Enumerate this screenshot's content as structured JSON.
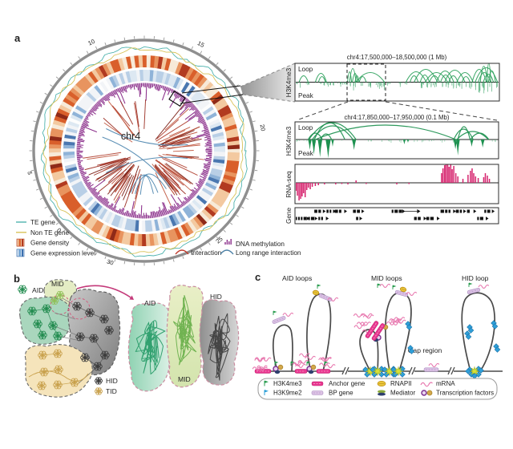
{
  "panel_a": {
    "label": "a",
    "circos": {
      "center_label": "chr4",
      "ticks": [
        {
          "label": "0",
          "angle": 223
        },
        {
          "label": "5",
          "angle": 191
        },
        {
          "label": "10",
          "angle": 116
        },
        {
          "label": "15",
          "angle": 62
        },
        {
          "label": "20",
          "angle": 11
        },
        {
          "label": "25",
          "angle": 310
        },
        {
          "label": "30",
          "angle": 253
        }
      ],
      "legend_left": [
        {
          "label": "TE gene",
          "type": "line",
          "color": "#4fb3ae"
        },
        {
          "label": "Non TE gene",
          "type": "line",
          "color": "#d9c35a"
        },
        {
          "label": "Gene density",
          "type": "blocks",
          "colors": [
            "#f3c9a0",
            "#d95f2b",
            "#b23a20"
          ]
        },
        {
          "label": "Gene expression level",
          "type": "blocks",
          "colors": [
            "#d5e3f2",
            "#6a9fd0",
            "#3a6fae"
          ]
        }
      ],
      "legend_right": [
        {
          "label": "DNA methylation",
          "type": "hist",
          "color": "#8b2f8b"
        },
        {
          "label": "Interaction",
          "type": "arc",
          "color": "#c0392b"
        },
        {
          "label": "Long range interaction",
          "type": "arc",
          "color": "#4a7fa5"
        }
      ]
    },
    "panel1": {
      "title": "chr4:17,500,000–18,500,000 (1 Mb)",
      "track": "H3K4me3",
      "loop": "Loop",
      "peak": "Peak",
      "highlight": [
        0.255,
        0.445
      ],
      "arcs": [
        [
          0.02,
          0.065,
          8
        ],
        [
          0.1,
          0.155,
          11
        ],
        [
          0.115,
          0.15,
          7
        ],
        [
          0.258,
          0.278,
          13
        ],
        [
          0.268,
          0.3,
          17
        ],
        [
          0.282,
          0.308,
          11
        ],
        [
          0.295,
          0.315,
          8
        ],
        [
          0.3,
          0.44,
          12
        ],
        [
          0.315,
          0.35,
          7
        ],
        [
          0.545,
          0.645,
          13
        ],
        [
          0.565,
          0.605,
          8
        ],
        [
          0.585,
          0.7,
          16
        ],
        [
          0.615,
          0.66,
          9
        ],
        [
          0.64,
          0.75,
          12
        ],
        [
          0.66,
          0.71,
          8
        ],
        [
          0.695,
          0.78,
          14
        ],
        [
          0.715,
          0.765,
          9
        ],
        [
          0.735,
          0.835,
          15
        ],
        [
          0.755,
          0.8,
          8
        ],
        [
          0.795,
          0.875,
          12
        ],
        [
          0.82,
          0.86,
          7
        ],
        [
          0.87,
          0.94,
          16
        ],
        [
          0.885,
          0.995,
          18
        ],
        [
          0.9,
          0.96,
          12
        ],
        [
          0.91,
          0.945,
          20
        ],
        [
          0.925,
          0.975,
          10
        ],
        [
          0.942,
          0.962,
          24
        ],
        [
          0.95,
          0.985,
          14
        ]
      ]
    },
    "panel2": {
      "title": "chr4:17,850,000–17,950,000 (0.1 Mb)",
      "track": "H3K4me3",
      "loop": "Loop",
      "peak": "Peak",
      "arcs": [
        [
          0.065,
          0.135,
          8
        ],
        [
          0.068,
          0.3,
          21
        ],
        [
          0.085,
          0.285,
          17
        ],
        [
          0.095,
          0.245,
          21
        ],
        [
          0.1,
          0.79,
          18
        ],
        [
          0.125,
          0.18,
          7
        ],
        [
          0.78,
          0.875,
          13
        ],
        [
          0.795,
          0.95,
          10
        ],
        [
          0.8,
          0.86,
          16
        ],
        [
          0.862,
          0.952,
          8
        ]
      ],
      "peaks": [
        [
          0.073,
          13,
          2.2
        ],
        [
          0.093,
          19,
          2.6
        ],
        [
          0.123,
          22,
          2.8
        ],
        [
          0.163,
          23,
          3.2
        ],
        [
          0.185,
          9,
          1.8
        ],
        [
          0.29,
          13,
          2.6
        ],
        [
          0.537,
          6,
          1.8
        ],
        [
          0.555,
          4,
          1.4
        ],
        [
          0.788,
          12,
          2.6
        ],
        [
          0.8,
          20,
          2.4
        ],
        [
          0.868,
          9,
          2.2
        ],
        [
          0.922,
          10,
          2.4
        ]
      ]
    },
    "rnaseq": {
      "track": "RNA-seq",
      "down": [
        [
          0.005,
          10
        ],
        [
          0.012,
          16
        ],
        [
          0.02,
          22
        ],
        [
          0.028,
          20
        ],
        [
          0.035,
          17
        ],
        [
          0.042,
          13
        ],
        [
          0.05,
          18
        ],
        [
          0.058,
          9
        ],
        [
          0.066,
          6
        ],
        [
          0.075,
          8
        ],
        [
          0.085,
          5
        ],
        [
          0.1,
          4
        ],
        [
          0.115,
          3
        ],
        [
          0.145,
          2
        ],
        [
          0.2,
          2
        ],
        [
          0.23,
          1.5
        ],
        [
          0.26,
          2
        ],
        [
          0.35,
          1.5
        ],
        [
          0.5,
          2
        ],
        [
          0.56,
          1.5
        ]
      ],
      "up": [
        [
          0.3,
          3
        ],
        [
          0.72,
          12
        ],
        [
          0.727,
          18
        ],
        [
          0.735,
          22
        ],
        [
          0.742,
          25
        ],
        [
          0.75,
          24
        ],
        [
          0.757,
          20
        ],
        [
          0.765,
          23
        ],
        [
          0.772,
          17
        ],
        [
          0.78,
          21
        ],
        [
          0.79,
          12
        ],
        [
          0.8,
          8
        ],
        [
          0.825,
          5
        ],
        [
          0.85,
          10
        ],
        [
          0.862,
          15
        ],
        [
          0.87,
          18
        ],
        [
          0.878,
          12
        ],
        [
          0.887,
          8
        ],
        [
          0.9,
          6
        ],
        [
          0.927,
          7
        ],
        [
          0.935,
          12
        ],
        [
          0.945,
          9
        ],
        [
          0.955,
          5
        ]
      ]
    },
    "gene": {
      "track": "Gene",
      "rows": [
        [
          [
            0.095,
            0.135,
            "b"
          ],
          [
            0.155,
            0.185,
            "b"
          ],
          [
            0.195,
            0.24,
            "b"
          ],
          [
            0.285,
            0.325,
            "b"
          ],
          [
            0.475,
            0.525,
            "b"
          ],
          [
            0.53,
            0.6,
            "l"
          ],
          [
            0.715,
            0.775,
            "b"
          ],
          [
            0.79,
            0.825,
            "b"
          ],
          [
            0.845,
            0.875,
            "b"
          ],
          [
            0.93,
            0.965,
            "b"
          ]
        ],
        [
          [
            0.0,
            0.055,
            "b"
          ],
          [
            0.065,
            0.095,
            "b"
          ],
          [
            0.115,
            0.15,
            "b"
          ],
          [
            0.3,
            0.315,
            "b"
          ],
          [
            0.585,
            0.63,
            "b"
          ],
          [
            0.645,
            0.695,
            "b"
          ],
          [
            0.895,
            0.935,
            "b"
          ]
        ]
      ]
    }
  },
  "panel_b": {
    "label": "b",
    "labels": {
      "aid_left": "AID",
      "mid_left": "MID",
      "hid_legend": "HID",
      "tid_legend": "TID",
      "aid_right": "AID",
      "mid_right": "MID",
      "hid_right": "HID"
    }
  },
  "panel_c": {
    "label": "c",
    "headings": [
      "AID loops",
      "MID loops",
      "HID loop"
    ],
    "gap_label": "Gap region",
    "legend": [
      {
        "label": "H3K4me3",
        "icon": "flag-green",
        "color": "#2a9d50"
      },
      {
        "label": "H3K9me2",
        "icon": "flag-blue",
        "color": "#2e9fd8"
      },
      {
        "label": "Anchor gene",
        "icon": "bar-pink",
        "color": "#e8368f"
      },
      {
        "label": "BP gene",
        "icon": "bar-purple",
        "color": "#dcc2e4"
      },
      {
        "label": "RNAPII",
        "icon": "rnapii",
        "color": "#e8c53a"
      },
      {
        "label": "Mediator",
        "icon": "mediator",
        "color": "#2e3f6e"
      },
      {
        "label": "mRNA",
        "icon": "mrna",
        "color": "#e87ab0"
      },
      {
        "label": "Transcription factors",
        "icon": "tf",
        "color": "#7b2d8e"
      }
    ]
  }
}
